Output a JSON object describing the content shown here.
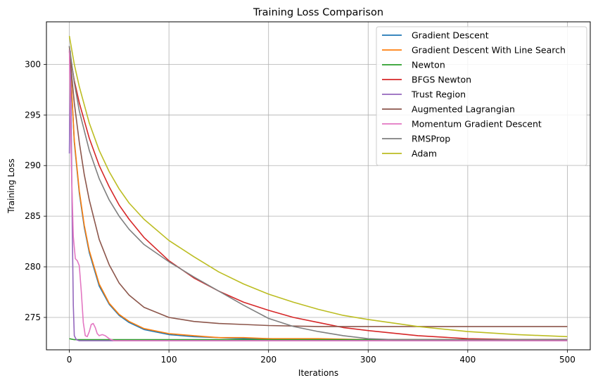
{
  "chart_data": {
    "type": "line",
    "title": "Training Loss Comparison",
    "xlabel": "Iterations",
    "ylabel": "Training Loss",
    "xlim": [
      -23,
      523
    ],
    "ylim": [
      271.8,
      304.2
    ],
    "xticks": [
      0,
      100,
      200,
      300,
      400,
      500
    ],
    "yticks": [
      275,
      280,
      285,
      290,
      295,
      300
    ],
    "grid": true,
    "legend_position": "top-right",
    "series": [
      {
        "name": "Gradient Descent",
        "color": "#1f77b4",
        "x": [
          0,
          5,
          10,
          15,
          20,
          30,
          40,
          50,
          60,
          75,
          100,
          125,
          150,
          175,
          200,
          250,
          300,
          350,
          400,
          450,
          500
        ],
        "values": [
          301.8,
          292.3,
          287.3,
          283.9,
          281.4,
          278.1,
          276.3,
          275.2,
          274.5,
          273.8,
          273.3,
          273.1,
          273.0,
          272.9,
          272.9,
          272.8,
          272.8,
          272.8,
          272.8,
          272.8,
          272.8
        ]
      },
      {
        "name": "Gradient Descent With Line Search",
        "color": "#ff7f0e",
        "x": [
          0,
          5,
          10,
          15,
          20,
          30,
          40,
          50,
          60,
          75,
          100,
          125,
          150,
          175,
          200,
          250,
          300,
          350,
          400,
          450,
          500
        ],
        "values": [
          301.8,
          292.5,
          287.5,
          284.1,
          281.6,
          278.3,
          276.4,
          275.3,
          274.6,
          273.9,
          273.4,
          273.2,
          273.0,
          273.0,
          272.9,
          272.9,
          272.8,
          272.8,
          272.8,
          272.8,
          272.8
        ]
      },
      {
        "name": "Newton",
        "color": "#2ca02c",
        "x": [
          0,
          5,
          10,
          20,
          50,
          100,
          150,
          200,
          250,
          300,
          350,
          400,
          450,
          500
        ],
        "values": [
          272.9,
          272.8,
          272.8,
          272.8,
          272.8,
          272.8,
          272.8,
          272.8,
          272.8,
          272.8,
          272.8,
          272.8,
          272.8,
          272.8
        ]
      },
      {
        "name": "BFGS Newton",
        "color": "#d62728",
        "x": [
          0,
          5,
          10,
          20,
          30,
          40,
          50,
          60,
          75,
          100,
          125,
          150,
          175,
          200,
          225,
          250,
          275,
          300,
          350,
          400,
          450,
          500
        ],
        "values": [
          301.2,
          298.4,
          296.2,
          292.7,
          290.0,
          287.9,
          286.1,
          284.7,
          282.9,
          280.6,
          278.9,
          277.6,
          276.5,
          275.7,
          275.0,
          274.5,
          274.0,
          273.7,
          273.2,
          272.9,
          272.8,
          272.8
        ]
      },
      {
        "name": "Trust Region",
        "color": "#9467bd",
        "x": [
          0,
          1,
          2,
          3,
          4,
          5,
          7,
          10,
          20,
          50,
          100,
          200,
          300,
          400,
          500
        ],
        "values": [
          291.2,
          301.3,
          293.0,
          283.5,
          276.2,
          273.2,
          272.8,
          272.7,
          272.7,
          272.7,
          272.7,
          272.7,
          272.7,
          272.7,
          272.7
        ]
      },
      {
        "name": "Augmented Lagrangian",
        "color": "#8c564b",
        "x": [
          0,
          5,
          10,
          15,
          20,
          30,
          40,
          50,
          60,
          75,
          100,
          125,
          150,
          175,
          200,
          250,
          300,
          350,
          400,
          450,
          500
        ],
        "values": [
          301.3,
          296.2,
          292.3,
          289.1,
          286.6,
          282.7,
          280.2,
          278.4,
          277.2,
          276.0,
          275.0,
          274.6,
          274.4,
          274.3,
          274.2,
          274.1,
          274.1,
          274.1,
          274.1,
          274.1,
          274.1
        ]
      },
      {
        "name": "Momentum Gradient Descent",
        "color": "#e377c2",
        "x": [
          0,
          2,
          4,
          6,
          8,
          10,
          12,
          14,
          16,
          18,
          20,
          22,
          24,
          26,
          28,
          30,
          33,
          36,
          40,
          45,
          50,
          60,
          80,
          100,
          200,
          300,
          400,
          500
        ],
        "values": [
          301.5,
          290.0,
          283.0,
          280.8,
          280.6,
          280.1,
          277.5,
          274.5,
          273.2,
          273.1,
          273.6,
          274.3,
          274.4,
          274.0,
          273.4,
          273.2,
          273.3,
          273.2,
          272.9,
          272.7,
          272.7,
          272.7,
          272.7,
          272.7,
          272.7,
          272.7,
          272.7,
          272.7
        ]
      },
      {
        "name": "RMSProp",
        "color": "#7f7f7f",
        "x": [
          0,
          5,
          10,
          20,
          30,
          40,
          50,
          60,
          75,
          100,
          125,
          150,
          175,
          200,
          225,
          250,
          275,
          300,
          325,
          350,
          400,
          450,
          500
        ],
        "values": [
          301.8,
          298.2,
          295.4,
          291.5,
          288.7,
          286.6,
          285.0,
          283.7,
          282.2,
          280.5,
          279.0,
          277.6,
          276.2,
          274.9,
          274.1,
          273.6,
          273.2,
          272.9,
          272.8,
          272.8,
          272.8,
          272.8,
          272.8
        ]
      },
      {
        "name": "Adam",
        "color": "#bcbd22",
        "x": [
          0,
          5,
          10,
          20,
          30,
          40,
          50,
          60,
          75,
          100,
          125,
          150,
          175,
          200,
          225,
          250,
          275,
          300,
          350,
          400,
          450,
          500
        ],
        "values": [
          302.8,
          300.0,
          297.8,
          294.2,
          291.5,
          289.4,
          287.7,
          286.3,
          284.7,
          282.6,
          281.0,
          279.5,
          278.3,
          277.3,
          276.5,
          275.8,
          275.2,
          274.8,
          274.1,
          273.6,
          273.3,
          273.1
        ]
      }
    ]
  }
}
